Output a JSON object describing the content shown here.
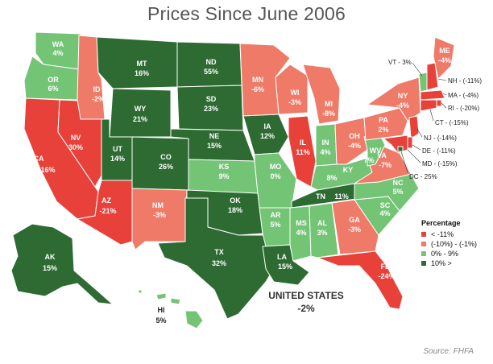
{
  "title": "Prices Since June 2006",
  "colors": {
    "lt_neg11": "#e8413a",
    "neg10_to_neg1": "#ef7a68",
    "zero_to_9": "#74c476",
    "ten_plus": "#2d6b33"
  },
  "legend": {
    "title": "Percentage",
    "items": [
      {
        "label": "< -11%",
        "color": "#e8413a"
      },
      {
        "label": "(-10%) - (-1%)",
        "color": "#ef7a68"
      },
      {
        "label": "0% - 9%",
        "color": "#74c476"
      },
      {
        "label": "10% >",
        "color": "#2d6b33"
      }
    ]
  },
  "states": {
    "WA": {
      "name": "WA",
      "value": "4%"
    },
    "OR": {
      "name": "OR",
      "value": "6%"
    },
    "CA": {
      "name": "CA",
      "value": "-16%"
    },
    "NV": {
      "name": "NV",
      "value": "30%"
    },
    "ID": {
      "name": "ID",
      "value": "-2%"
    },
    "MT": {
      "name": "MT",
      "value": "16%"
    },
    "WY": {
      "name": "WY",
      "value": "21%"
    },
    "UT": {
      "name": "UT",
      "value": "14%"
    },
    "AZ": {
      "name": "AZ",
      "value": "-21%"
    },
    "CO": {
      "name": "CO",
      "value": "26%"
    },
    "NM": {
      "name": "NM",
      "value": "-3%"
    },
    "ND": {
      "name": "ND",
      "value": "55%"
    },
    "SD": {
      "name": "SD",
      "value": "23%"
    },
    "NE": {
      "name": "NE",
      "value": "15%"
    },
    "KS": {
      "name": "KS",
      "value": "9%"
    },
    "OK": {
      "name": "OK",
      "value": "18%"
    },
    "TX": {
      "name": "TX",
      "value": "32%"
    },
    "MN": {
      "name": "MN",
      "value": "-6%"
    },
    "IA": {
      "name": "IA",
      "value": "12%"
    },
    "MO": {
      "name": "MO",
      "value": "0%"
    },
    "AR": {
      "name": "AR",
      "value": "5%"
    },
    "LA": {
      "name": "LA",
      "value": "15%"
    },
    "WI": {
      "name": "WI",
      "value": "-3%"
    },
    "IL": {
      "name": "IL",
      "value": "11%"
    },
    "MI": {
      "name": "MI",
      "value": "-8%"
    },
    "IN": {
      "name": "IN",
      "value": "4%"
    },
    "OH": {
      "name": "OH",
      "value": "-4%"
    },
    "KY": {
      "name": "KY",
      "value": "8%"
    },
    "TN": {
      "name": "TN",
      "value": "11%"
    },
    "MS": {
      "name": "MS",
      "value": "4%"
    },
    "AL": {
      "name": "AL",
      "value": "3%"
    },
    "GA": {
      "name": "GA",
      "value": "-3%"
    },
    "FL": {
      "name": "FL",
      "value": "-24%"
    },
    "SC": {
      "name": "SC",
      "value": "4%"
    },
    "NC": {
      "name": "NC",
      "value": "5%"
    },
    "VA": {
      "name": "VA",
      "value": "-7%"
    },
    "WV": {
      "name": "WV",
      "value": "7%"
    },
    "PA": {
      "name": "PA",
      "value": "2%"
    },
    "NY": {
      "name": "NY",
      "value": "-4%"
    },
    "ME": {
      "name": "ME",
      "value": "-4%"
    },
    "AK": {
      "name": "AK",
      "value": "15%"
    },
    "HI": {
      "name": "HI",
      "value": "5%"
    }
  },
  "callouts": {
    "VT": "VT - 3%",
    "NH": "NH - (-11%)",
    "MA": "MA - (-4%)",
    "RI": "RI - (-20%)",
    "CT": "CT - (-15%)",
    "NJ": "NJ - (-14%)",
    "DE": "DE - (-11%)",
    "MD": "MD - (-15%)",
    "DC": "DC - 25%"
  },
  "us": {
    "label": "UNITED STATES",
    "value": "-2%"
  },
  "source": "Source: FHFA"
}
